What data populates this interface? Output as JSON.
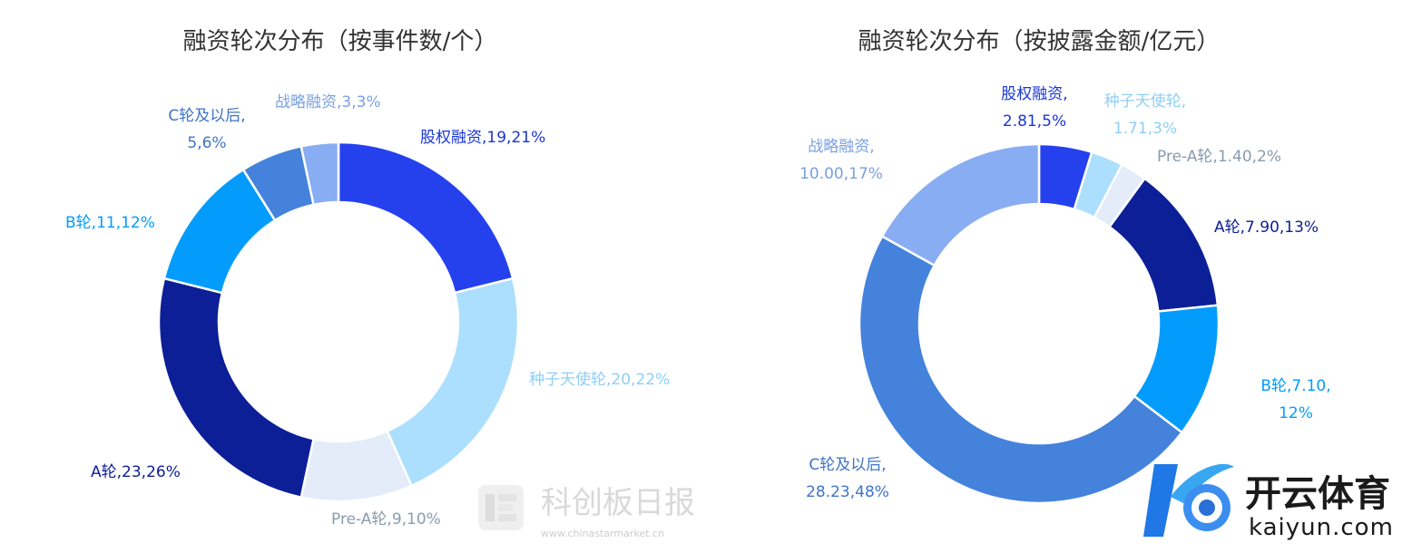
{
  "watermark": {
    "text": "科创板日报",
    "url": "www.chinastarmarket.cn"
  },
  "brand": {
    "name": "开云体育",
    "domain": "kaiyun.com"
  },
  "colors": {
    "equity": "#2541ee",
    "seed": "#abdffd",
    "prea": "#e3ecf8",
    "a": "#0c1f96",
    "b": "#049cfc",
    "c": "#4482dc",
    "strategic": "#88adf3"
  },
  "chart_data": [
    {
      "type": "pie",
      "donut": true,
      "title": "融资轮次分布（按事件数/个）",
      "slices": [
        {
          "name": "股权融资",
          "value": 19,
          "percent": "21%",
          "label_lines": [
            "股权融资,19,21%"
          ],
          "color_key": "equity"
        },
        {
          "name": "种子天使轮",
          "value": 20,
          "percent": "22%",
          "label_lines": [
            "种子天使轮,20,22%"
          ],
          "color_key": "seed"
        },
        {
          "name": "Pre-A轮",
          "value": 9,
          "percent": "10%",
          "label_lines": [
            "Pre-A轮,9,10%"
          ],
          "color_key": "prea"
        },
        {
          "name": "A轮",
          "value": 23,
          "percent": "26%",
          "label_lines": [
            "A轮,23,26%"
          ],
          "color_key": "a"
        },
        {
          "name": "B轮",
          "value": 11,
          "percent": "12%",
          "label_lines": [
            "B轮,11,12%"
          ],
          "color_key": "b"
        },
        {
          "name": "C轮及以后",
          "value": 5,
          "percent": "6%",
          "label_lines": [
            "C轮及以后,",
            "5,6%"
          ],
          "color_key": "c"
        },
        {
          "name": "战略融资",
          "value": 3,
          "percent": "3%",
          "label_lines": [
            "战略融资,3,3%"
          ],
          "color_key": "strategic"
        }
      ]
    },
    {
      "type": "pie",
      "donut": true,
      "title": "融资轮次分布（按披露金额/亿元）",
      "slices": [
        {
          "name": "股权融资",
          "value": 2.81,
          "percent": "5%",
          "label_lines": [
            "股权融资,",
            "2.81,5%"
          ],
          "color_key": "equity"
        },
        {
          "name": "种子天使轮",
          "value": 1.71,
          "percent": "3%",
          "label_lines": [
            "种子天使轮,",
            "1.71,3%"
          ],
          "color_key": "seed"
        },
        {
          "name": "Pre-A轮",
          "value": 1.4,
          "percent": "2%",
          "label_lines": [
            "Pre-A轮,1.40,2%"
          ],
          "color_key": "prea"
        },
        {
          "name": "A轮",
          "value": 7.9,
          "percent": "13%",
          "label_lines": [
            "A轮,7.90,13%"
          ],
          "color_key": "a"
        },
        {
          "name": "B轮",
          "value": 7.1,
          "percent": "12%",
          "label_lines": [
            "B轮,7.10,",
            "12%"
          ],
          "color_key": "b"
        },
        {
          "name": "C轮及以后",
          "value": 28.23,
          "percent": "48%",
          "label_lines": [
            "C轮及以后,",
            "28.23,48%"
          ],
          "color_key": "c"
        },
        {
          "name": "战略融资",
          "value": 10,
          "percent": "17%",
          "label_lines": [
            "战略融资,",
            "10.00,17%"
          ],
          "color_key": "strategic"
        }
      ]
    }
  ]
}
